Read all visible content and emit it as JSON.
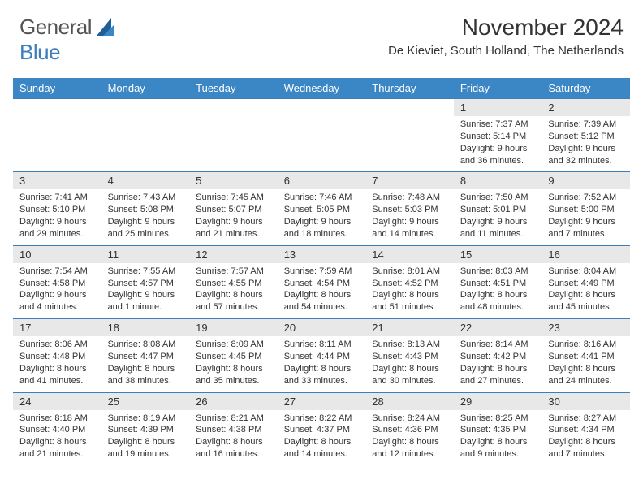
{
  "brand": {
    "part1": "General",
    "part2": "Blue"
  },
  "title": "November 2024",
  "location": "De Kieviet, South Holland, The Netherlands",
  "colors": {
    "header_bg": "#3b86c4",
    "accent": "#3b7fbf",
    "daynum_bg": "#e8e8e8",
    "text": "#333333",
    "logo_gray": "#555555"
  },
  "weekdays": [
    "Sunday",
    "Monday",
    "Tuesday",
    "Wednesday",
    "Thursday",
    "Friday",
    "Saturday"
  ],
  "weeks": [
    {
      "nums": [
        "",
        "",
        "",
        "",
        "",
        "1",
        "2"
      ],
      "cells": [
        null,
        null,
        null,
        null,
        null,
        {
          "sunrise": "Sunrise: 7:37 AM",
          "sunset": "Sunset: 5:14 PM",
          "day1": "Daylight: 9 hours",
          "day2": "and 36 minutes."
        },
        {
          "sunrise": "Sunrise: 7:39 AM",
          "sunset": "Sunset: 5:12 PM",
          "day1": "Daylight: 9 hours",
          "day2": "and 32 minutes."
        }
      ]
    },
    {
      "nums": [
        "3",
        "4",
        "5",
        "6",
        "7",
        "8",
        "9"
      ],
      "cells": [
        {
          "sunrise": "Sunrise: 7:41 AM",
          "sunset": "Sunset: 5:10 PM",
          "day1": "Daylight: 9 hours",
          "day2": "and 29 minutes."
        },
        {
          "sunrise": "Sunrise: 7:43 AM",
          "sunset": "Sunset: 5:08 PM",
          "day1": "Daylight: 9 hours",
          "day2": "and 25 minutes."
        },
        {
          "sunrise": "Sunrise: 7:45 AM",
          "sunset": "Sunset: 5:07 PM",
          "day1": "Daylight: 9 hours",
          "day2": "and 21 minutes."
        },
        {
          "sunrise": "Sunrise: 7:46 AM",
          "sunset": "Sunset: 5:05 PM",
          "day1": "Daylight: 9 hours",
          "day2": "and 18 minutes."
        },
        {
          "sunrise": "Sunrise: 7:48 AM",
          "sunset": "Sunset: 5:03 PM",
          "day1": "Daylight: 9 hours",
          "day2": "and 14 minutes."
        },
        {
          "sunrise": "Sunrise: 7:50 AM",
          "sunset": "Sunset: 5:01 PM",
          "day1": "Daylight: 9 hours",
          "day2": "and 11 minutes."
        },
        {
          "sunrise": "Sunrise: 7:52 AM",
          "sunset": "Sunset: 5:00 PM",
          "day1": "Daylight: 9 hours",
          "day2": "and 7 minutes."
        }
      ]
    },
    {
      "nums": [
        "10",
        "11",
        "12",
        "13",
        "14",
        "15",
        "16"
      ],
      "cells": [
        {
          "sunrise": "Sunrise: 7:54 AM",
          "sunset": "Sunset: 4:58 PM",
          "day1": "Daylight: 9 hours",
          "day2": "and 4 minutes."
        },
        {
          "sunrise": "Sunrise: 7:55 AM",
          "sunset": "Sunset: 4:57 PM",
          "day1": "Daylight: 9 hours",
          "day2": "and 1 minute."
        },
        {
          "sunrise": "Sunrise: 7:57 AM",
          "sunset": "Sunset: 4:55 PM",
          "day1": "Daylight: 8 hours",
          "day2": "and 57 minutes."
        },
        {
          "sunrise": "Sunrise: 7:59 AM",
          "sunset": "Sunset: 4:54 PM",
          "day1": "Daylight: 8 hours",
          "day2": "and 54 minutes."
        },
        {
          "sunrise": "Sunrise: 8:01 AM",
          "sunset": "Sunset: 4:52 PM",
          "day1": "Daylight: 8 hours",
          "day2": "and 51 minutes."
        },
        {
          "sunrise": "Sunrise: 8:03 AM",
          "sunset": "Sunset: 4:51 PM",
          "day1": "Daylight: 8 hours",
          "day2": "and 48 minutes."
        },
        {
          "sunrise": "Sunrise: 8:04 AM",
          "sunset": "Sunset: 4:49 PM",
          "day1": "Daylight: 8 hours",
          "day2": "and 45 minutes."
        }
      ]
    },
    {
      "nums": [
        "17",
        "18",
        "19",
        "20",
        "21",
        "22",
        "23"
      ],
      "cells": [
        {
          "sunrise": "Sunrise: 8:06 AM",
          "sunset": "Sunset: 4:48 PM",
          "day1": "Daylight: 8 hours",
          "day2": "and 41 minutes."
        },
        {
          "sunrise": "Sunrise: 8:08 AM",
          "sunset": "Sunset: 4:47 PM",
          "day1": "Daylight: 8 hours",
          "day2": "and 38 minutes."
        },
        {
          "sunrise": "Sunrise: 8:09 AM",
          "sunset": "Sunset: 4:45 PM",
          "day1": "Daylight: 8 hours",
          "day2": "and 35 minutes."
        },
        {
          "sunrise": "Sunrise: 8:11 AM",
          "sunset": "Sunset: 4:44 PM",
          "day1": "Daylight: 8 hours",
          "day2": "and 33 minutes."
        },
        {
          "sunrise": "Sunrise: 8:13 AM",
          "sunset": "Sunset: 4:43 PM",
          "day1": "Daylight: 8 hours",
          "day2": "and 30 minutes."
        },
        {
          "sunrise": "Sunrise: 8:14 AM",
          "sunset": "Sunset: 4:42 PM",
          "day1": "Daylight: 8 hours",
          "day2": "and 27 minutes."
        },
        {
          "sunrise": "Sunrise: 8:16 AM",
          "sunset": "Sunset: 4:41 PM",
          "day1": "Daylight: 8 hours",
          "day2": "and 24 minutes."
        }
      ]
    },
    {
      "nums": [
        "24",
        "25",
        "26",
        "27",
        "28",
        "29",
        "30"
      ],
      "cells": [
        {
          "sunrise": "Sunrise: 8:18 AM",
          "sunset": "Sunset: 4:40 PM",
          "day1": "Daylight: 8 hours",
          "day2": "and 21 minutes."
        },
        {
          "sunrise": "Sunrise: 8:19 AM",
          "sunset": "Sunset: 4:39 PM",
          "day1": "Daylight: 8 hours",
          "day2": "and 19 minutes."
        },
        {
          "sunrise": "Sunrise: 8:21 AM",
          "sunset": "Sunset: 4:38 PM",
          "day1": "Daylight: 8 hours",
          "day2": "and 16 minutes."
        },
        {
          "sunrise": "Sunrise: 8:22 AM",
          "sunset": "Sunset: 4:37 PM",
          "day1": "Daylight: 8 hours",
          "day2": "and 14 minutes."
        },
        {
          "sunrise": "Sunrise: 8:24 AM",
          "sunset": "Sunset: 4:36 PM",
          "day1": "Daylight: 8 hours",
          "day2": "and 12 minutes."
        },
        {
          "sunrise": "Sunrise: 8:25 AM",
          "sunset": "Sunset: 4:35 PM",
          "day1": "Daylight: 8 hours",
          "day2": "and 9 minutes."
        },
        {
          "sunrise": "Sunrise: 8:27 AM",
          "sunset": "Sunset: 4:34 PM",
          "day1": "Daylight: 8 hours",
          "day2": "and 7 minutes."
        }
      ]
    }
  ]
}
